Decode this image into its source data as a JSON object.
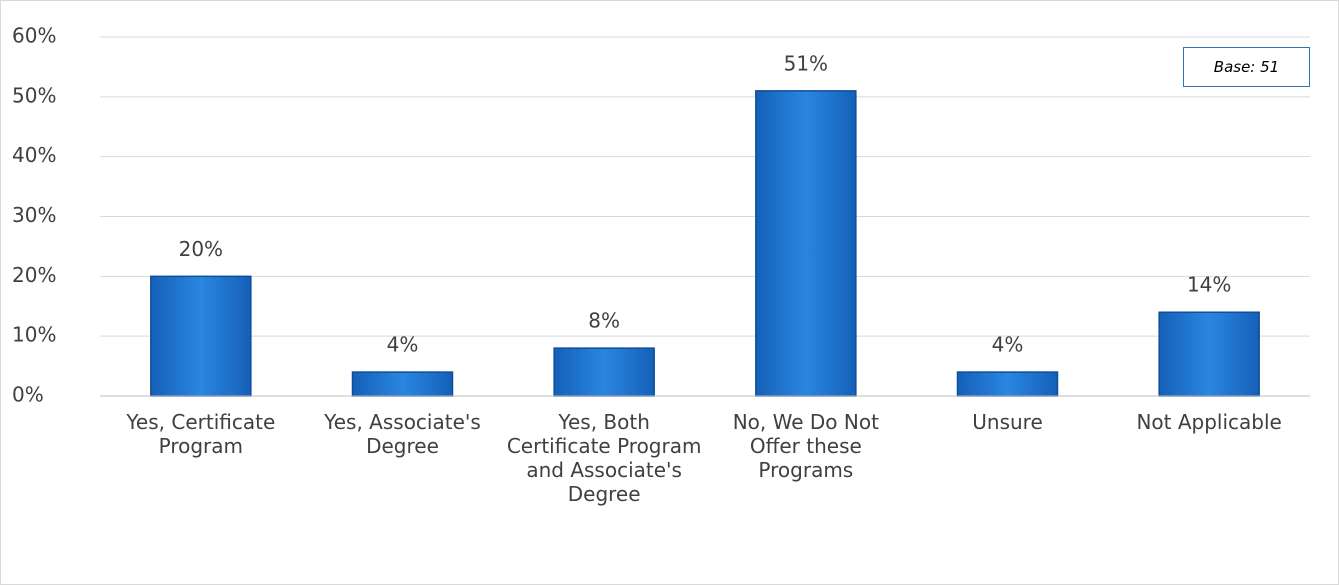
{
  "chart_data": {
    "type": "bar",
    "categories": [
      "Yes, Certificate Program",
      "Yes, Associate's Degree",
      "Yes, Both Certificate Program and Associate's Degree",
      "No, We Do Not Offer these Programs",
      "Unsure",
      "Not Applicable"
    ],
    "values": [
      20,
      4,
      8,
      51,
      4,
      14
    ],
    "value_labels": [
      "20%",
      "4%",
      "8%",
      "51%",
      "4%",
      "14%"
    ],
    "color": "#1e78d6",
    "ylim": [
      0,
      60
    ],
    "yticks": [
      {
        "value": 0,
        "label": "0%"
      },
      {
        "value": 10,
        "label": "10%"
      },
      {
        "value": 20,
        "label": "20%"
      },
      {
        "value": 30,
        "label": "30%"
      },
      {
        "value": 40,
        "label": "40%"
      },
      {
        "value": 50,
        "label": "50%"
      },
      {
        "value": 60,
        "label": "60%"
      }
    ],
    "grid": true,
    "annotation": "Base: 51"
  }
}
